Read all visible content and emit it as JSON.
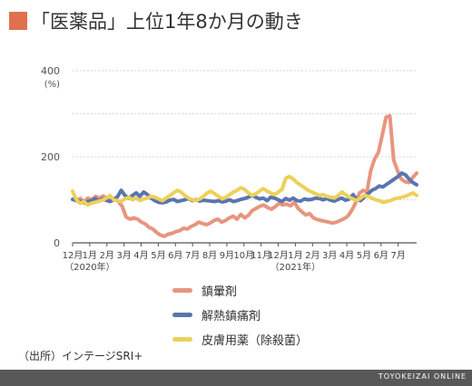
{
  "title": "「医薬品」上位1年8か月の動き",
  "colors": {
    "accent": "#e0714f",
    "chin": "#e8957f",
    "kaine": "#5b75b0",
    "hifu": "#ecd15a",
    "footer": "#585858"
  },
  "source": "（出所）インテージSRI+",
  "footer": "TOYOKEIZAI ONLINE",
  "chart_data": {
    "type": "line",
    "y_unit": "(%)",
    "ylim": [
      0,
      400
    ],
    "yticks": [
      "0",
      "200",
      "400"
    ],
    "grid": true,
    "x_ticks": [
      "12月",
      "1月",
      "2月",
      "3月",
      "4月",
      "5月",
      "6月",
      "7月",
      "8月",
      "9月",
      "10月",
      "11月",
      "12月",
      "1月",
      "2月",
      "3月",
      "4月",
      "5月",
      "6月",
      "7月"
    ],
    "x_tick_positions": [
      0,
      4.33,
      8.67,
      13,
      17.33,
      21.67,
      26,
      30.33,
      34.67,
      39,
      43.33,
      47.67,
      52,
      56.33,
      60.67,
      65,
      69.33,
      73.67,
      78,
      82.33
    ],
    "x_year_labels": [
      {
        "text": "（2020年）",
        "x": 4.33
      },
      {
        "text": "（2021年）",
        "x": 56.33
      }
    ],
    "x_range": [
      0,
      87
    ],
    "legend_position": "bottom",
    "series": [
      {
        "name": "鎮暈剤",
        "color": "#e8957f",
        "values": [
          101,
          98,
          103,
          96,
          104,
          100,
          108,
          104,
          109,
          103,
          99,
          104,
          96,
          84,
          60,
          55,
          58,
          55,
          48,
          44,
          36,
          32,
          24,
          18,
          15,
          20,
          22,
          26,
          28,
          34,
          32,
          38,
          42,
          48,
          45,
          42,
          46,
          52,
          55,
          48,
          52,
          58,
          62,
          55,
          66,
          58,
          64,
          75,
          80,
          85,
          88,
          82,
          78,
          84,
          92,
          88,
          90,
          86,
          94,
          80,
          72,
          65,
          68,
          58,
          54,
          52,
          50,
          48,
          46,
          48,
          52,
          56,
          62,
          75,
          92,
          115,
          122,
          118,
          168,
          195,
          210,
          250,
          292,
          295,
          192,
          168,
          148,
          142,
          140,
          152,
          162
        ]
      },
      {
        "name": "解熱鎮痛剤",
        "color": "#5b75b0",
        "values": [
          101,
          98,
          97,
          93,
          96,
          98,
          103,
          98,
          102,
          99,
          96,
          100,
          107,
          122,
          110,
          104,
          110,
          116,
          108,
          118,
          112,
          104,
          98,
          94,
          93,
          95,
          99,
          101,
          96,
          98,
          100,
          103,
          98,
          100,
          97,
          99,
          98,
          97,
          96,
          98,
          95,
          97,
          100,
          96,
          98,
          101,
          103,
          106,
          110,
          106,
          102,
          104,
          98,
          106,
          104,
          100,
          96,
          103,
          99,
          104,
          98,
          97,
          102,
          100,
          101,
          104,
          103,
          100,
          103,
          99,
          97,
          101,
          104,
          99,
          102,
          112,
          100,
          98,
          106,
          114,
          122,
          126,
          132,
          130,
          136,
          142,
          148,
          154,
          162,
          158,
          148,
          140,
          135
        ]
      },
      {
        "name": "皮膚用薬（除殺菌）",
        "color": "#ecd15a",
        "values": [
          120,
          100,
          92,
          96,
          88,
          92,
          94,
          97,
          99,
          104,
          110,
          100,
          98,
          96,
          102,
          106,
          100,
          104,
          98,
          102,
          104,
          108,
          106,
          102,
          98,
          104,
          110,
          116,
          122,
          118,
          110,
          104,
          100,
          98,
          102,
          108,
          116,
          120,
          114,
          108,
          102,
          106,
          112,
          118,
          122,
          128,
          124,
          116,
          110,
          114,
          120,
          126,
          120,
          116,
          112,
          118,
          124,
          150,
          154,
          148,
          140,
          134,
          128,
          122,
          118,
          114,
          110,
          112,
          108,
          106,
          104,
          110,
          118,
          112,
          106,
          102,
          98,
          104,
          110,
          108,
          104,
          100,
          98,
          94,
          96,
          98,
          102,
          104,
          106,
          108,
          112,
          116,
          110
        ]
      }
    ]
  }
}
